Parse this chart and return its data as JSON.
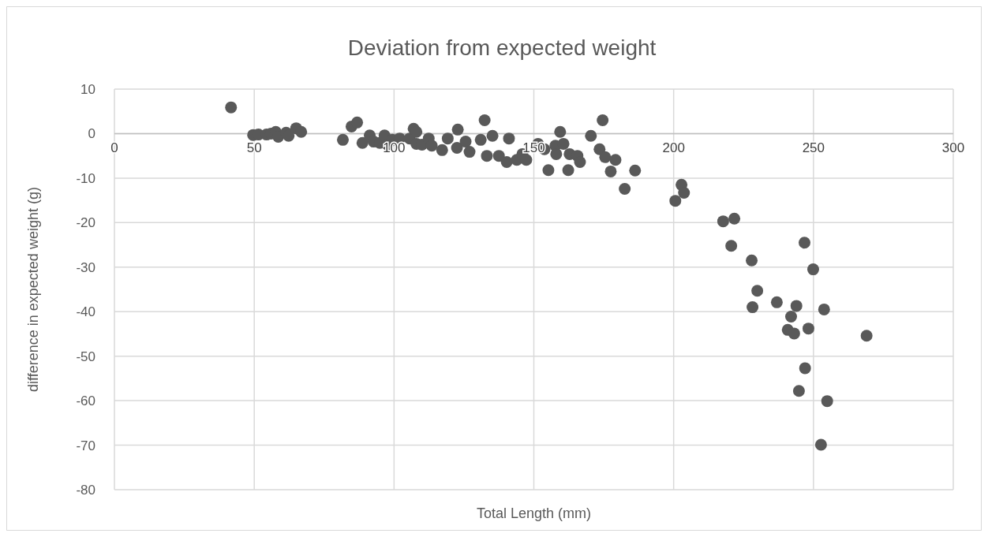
{
  "chart_data": {
    "type": "scatter",
    "title": "Deviation from expected weight",
    "xlabel": "Total Length (mm)",
    "ylabel": "difference in expected weight (g)",
    "xlim": [
      0,
      300
    ],
    "xticks": [
      0,
      50,
      100,
      150,
      200,
      250,
      300
    ],
    "ylim": [
      -80,
      10
    ],
    "yticks": [
      -80,
      -70,
      -60,
      -50,
      -40,
      -30,
      -20,
      -10,
      0,
      10
    ],
    "grid": true,
    "marker": "circle",
    "series": [
      {
        "color": "#595959",
        "x": [
          41.7,
          49.6,
          51.5,
          54.4,
          56,
          57.7,
          58.6,
          61.4,
          62.3,
          65,
          66.8,
          81.7,
          84.8,
          86.8,
          88.7,
          91.3,
          92.7,
          94.9,
          96.6,
          97.7,
          99.4,
          102,
          105.6,
          107,
          108,
          108,
          110,
          112.4,
          113.5,
          117.2,
          119.2,
          122.8,
          122.5,
          125.6,
          127,
          132.4,
          131,
          135.2,
          133.2,
          137.5,
          140.3,
          141.1,
          143.9,
          145.9,
          147.3,
          151.5,
          153.8,
          155.2,
          157.7,
          159.4,
          160.6,
          158,
          162.3,
          162.8,
          165.6,
          166.5,
          170.4,
          174.6,
          173.5,
          175.5,
          177.5,
          179.2,
          182.5,
          186.2,
          202.8,
          203.7,
          200.6,
          217.7,
          221.7,
          220.6,
          227.9,
          246.8,
          249.9,
          229.9,
          228.2,
          236.9,
          243.9,
          253.8,
          242,
          240.8,
          243.1,
          248.2,
          269,
          247,
          244.8,
          254.9,
          252.7
        ],
        "values": [
          5.9,
          -0.3,
          -0.2,
          -0.2,
          0,
          0.4,
          -0.7,
          0.2,
          -0.5,
          1.2,
          0.4,
          -1.4,
          1.6,
          2.5,
          -2.1,
          -0.4,
          -1.8,
          -2.1,
          -0.4,
          -2.5,
          -1.4,
          -1.1,
          -1.1,
          1.1,
          0.4,
          -2.3,
          -2.5,
          -1.1,
          -2.7,
          -3.7,
          -1.1,
          0.9,
          -3.2,
          -1.8,
          -4.1,
          3.0,
          -1.4,
          -0.5,
          -5.0,
          -5.0,
          -6.4,
          -1.1,
          -5.9,
          -4.6,
          -5.9,
          -2.3,
          -3.5,
          -8.2,
          -2.7,
          0.4,
          -2.3,
          -4.6,
          -8.2,
          -4.6,
          -5.0,
          -6.4,
          -0.5,
          3.0,
          -3.5,
          -5.3,
          -8.5,
          -5.9,
          -12.4,
          -8.3,
          -11.5,
          -13.3,
          -15.1,
          -19.7,
          -19.1,
          -25.2,
          -28.5,
          -24.5,
          -30.5,
          -35.3,
          -39.0,
          -37.9,
          -38.7,
          -39.5,
          -41.1,
          -44.1,
          -44.9,
          -43.8,
          -45.4,
          -52.7,
          -57.8,
          -60.1,
          -69.9
        ]
      }
    ]
  }
}
